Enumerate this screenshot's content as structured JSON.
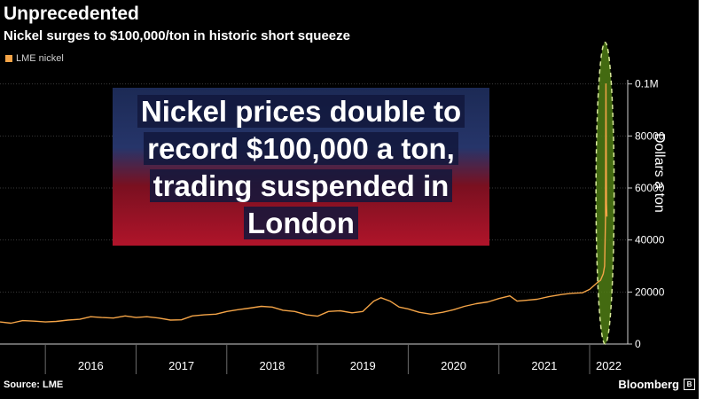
{
  "header": {
    "title": "Unprecedented",
    "subtitle": "Nickel surges to $100,000/ton in historic short squeeze"
  },
  "legend_label": "LME nickel",
  "overlay_caption": {
    "lines": [
      "Nickel prices double to",
      "record $100,000 a ton,",
      "trading suspended in",
      "London"
    ]
  },
  "footer": {
    "source": "Source: LME",
    "brand": "Bloomberg"
  },
  "colors": {
    "series": "#f4a447",
    "highlight_fill": "#4f7d14",
    "highlight_stroke": "#d8e89a"
  },
  "chart_data": {
    "type": "line",
    "title": "Unprecedented",
    "subtitle": "Nickel surges to $100,000/ton in historic short squeeze",
    "ylabel": "Dollars a ton",
    "xlabel": "",
    "x_ticks": [
      "2016",
      "2017",
      "2018",
      "2019",
      "2020",
      "2021",
      "2022"
    ],
    "y_ticks": [
      {
        "value": 0,
        "label": "0"
      },
      {
        "value": 20000,
        "label": "20000"
      },
      {
        "value": 40000,
        "label": "40000"
      },
      {
        "value": 60000,
        "label": "60000"
      },
      {
        "value": 80000,
        "label": "80000"
      },
      {
        "value": 100000,
        "label": "0.1M"
      }
    ],
    "ylim": [
      0,
      105000
    ],
    "xlim": [
      2015.5,
      2022.42
    ],
    "legend": "top-left",
    "series": [
      {
        "name": "LME nickel",
        "x": [
          2015.5,
          2015.62,
          2015.75,
          2015.88,
          2016.0,
          2016.12,
          2016.25,
          2016.38,
          2016.5,
          2016.62,
          2016.75,
          2016.88,
          2017.0,
          2017.12,
          2017.25,
          2017.38,
          2017.5,
          2017.62,
          2017.75,
          2017.88,
          2018.0,
          2018.12,
          2018.25,
          2018.38,
          2018.5,
          2018.62,
          2018.75,
          2018.88,
          2019.0,
          2019.12,
          2019.25,
          2019.38,
          2019.5,
          2019.62,
          2019.7,
          2019.8,
          2019.9,
          2020.0,
          2020.12,
          2020.25,
          2020.38,
          2020.5,
          2020.62,
          2020.75,
          2020.88,
          2021.0,
          2021.12,
          2021.2,
          2021.3,
          2021.42,
          2021.55,
          2021.68,
          2021.8,
          2021.92,
          2022.0,
          2022.08,
          2022.12,
          2022.15,
          2022.165,
          2022.175,
          2022.18,
          2022.185,
          2022.19
        ],
        "values": [
          8500,
          8000,
          9000,
          8800,
          8500,
          8700,
          9200,
          9500,
          10500,
          10200,
          10000,
          10800,
          10200,
          10500,
          10000,
          9200,
          9300,
          10800,
          11200,
          11500,
          12500,
          13200,
          13800,
          14500,
          14200,
          13000,
          12500,
          11200,
          10700,
          12500,
          12800,
          12000,
          12500,
          16500,
          17800,
          16500,
          14200,
          13500,
          12200,
          11500,
          12200,
          13200,
          14500,
          15500,
          16200,
          17500,
          18500,
          16500,
          16800,
          17200,
          18200,
          19000,
          19500,
          19700,
          21000,
          23500,
          24500,
          27000,
          30000,
          48000,
          100000,
          54000,
          49000
        ]
      }
    ],
    "highlight_ellipse": {
      "x_center": 2022.17,
      "y_center": 58000,
      "x_radius": 0.1,
      "y_radius": 58000
    }
  }
}
